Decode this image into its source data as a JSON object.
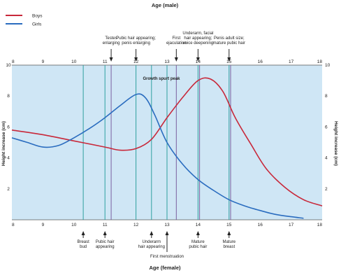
{
  "chart_data": {
    "type": "line",
    "top_axis_title": "Age (male)",
    "bottom_axis_title": "Age (female)",
    "left_axis_title": "Height increase (cm)",
    "right_axis_title": "Height increase (cm)",
    "x_range": [
      8,
      18
    ],
    "y_range": [
      0,
      10
    ],
    "y_ticks": [
      2,
      4,
      6,
      8,
      10
    ],
    "x_ticks": [
      8,
      9,
      10,
      11,
      12,
      13,
      14,
      15,
      16,
      17,
      18
    ],
    "legend_position": "top-left",
    "background_color": "#cfe6f5",
    "annotation_line_color": "#2fa0a0",
    "annotation_line_color_alt": "#7a5fa0",
    "series": [
      {
        "name": "Boys",
        "color": "#c8283a",
        "points": [
          [
            8,
            5.8
          ],
          [
            9,
            5.5
          ],
          [
            10,
            5.1
          ],
          [
            11,
            4.7
          ],
          [
            11.5,
            4.5
          ],
          [
            12,
            4.6
          ],
          [
            12.5,
            5.2
          ],
          [
            13,
            6.6
          ],
          [
            13.5,
            7.9
          ],
          [
            14,
            9.0
          ],
          [
            14.4,
            9.1
          ],
          [
            14.8,
            8.3
          ],
          [
            15.2,
            6.6
          ],
          [
            15.7,
            4.9
          ],
          [
            16.2,
            3.3
          ],
          [
            16.8,
            2.1
          ],
          [
            17.4,
            1.3
          ],
          [
            18,
            0.9
          ]
        ]
      },
      {
        "name": "Girls",
        "color": "#2a6cbf",
        "points": [
          [
            8,
            5.3
          ],
          [
            8.5,
            5.0
          ],
          [
            9,
            4.7
          ],
          [
            9.5,
            4.8
          ],
          [
            10,
            5.3
          ],
          [
            10.5,
            5.9
          ],
          [
            11,
            6.6
          ],
          [
            11.5,
            7.4
          ],
          [
            12,
            8.1
          ],
          [
            12.3,
            7.9
          ],
          [
            12.6,
            6.8
          ],
          [
            13,
            5.0
          ],
          [
            13.5,
            3.6
          ],
          [
            14,
            2.6
          ],
          [
            14.5,
            1.9
          ],
          [
            15,
            1.3
          ],
          [
            15.5,
            0.9
          ],
          [
            16,
            0.6
          ],
          [
            16.5,
            0.35
          ],
          [
            17,
            0.2
          ],
          [
            17.4,
            0.1
          ]
        ]
      }
    ],
    "peak_label": "Growth spurt peak",
    "male_markers": [
      {
        "label": [
          "Testes",
          "enlarging"
        ],
        "age": 11.2
      },
      {
        "label": [
          "Pubic hair appearing;",
          "penis enlarging"
        ],
        "age": 12.0
      },
      {
        "label": [
          "First",
          "ejaculation"
        ],
        "age": 13.3
      },
      {
        "label": [
          "Underarm, facial",
          "hair appearing;",
          "voice deepening"
        ],
        "age": 14.0
      },
      {
        "label": [
          "Penis adult size;",
          "mature pubic hair"
        ],
        "age": 15.0
      }
    ],
    "female_markers": [
      {
        "label": [
          "Breast",
          "bud"
        ],
        "age": 10.3
      },
      {
        "label": [
          "Pubic hair",
          "appearing"
        ],
        "age": 11.0
      },
      {
        "label": [
          "Underarm",
          "hair appearing"
        ],
        "age": 12.5
      },
      {
        "label": [
          "First menstruation"
        ],
        "age": 13.0
      },
      {
        "label": [
          "Mature",
          "pubic hair"
        ],
        "age": 14.0
      },
      {
        "label": [
          "Mature",
          "breast"
        ],
        "age": 15.0
      }
    ],
    "vertical_lines": [
      {
        "age": 10.3,
        "kind": "female"
      },
      {
        "age": 11.0,
        "kind": "female"
      },
      {
        "age": 11.2,
        "kind": "male"
      },
      {
        "age": 12.0,
        "kind": "female"
      },
      {
        "age": 12.5,
        "kind": "female"
      },
      {
        "age": 13.0,
        "kind": "female"
      },
      {
        "age": 13.3,
        "kind": "male"
      },
      {
        "age": 14.0,
        "kind": "female"
      },
      {
        "age": 14.05,
        "kind": "male"
      },
      {
        "age": 15.0,
        "kind": "female"
      },
      {
        "age": 15.05,
        "kind": "male"
      }
    ]
  }
}
